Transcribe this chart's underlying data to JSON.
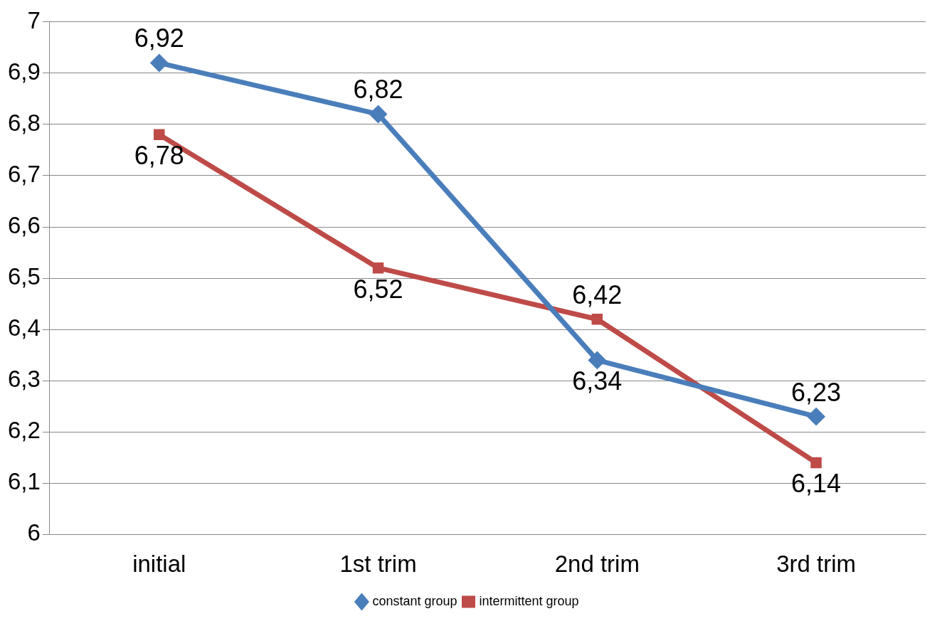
{
  "chart_data": {
    "type": "line",
    "categories": [
      "initial",
      "1st trim",
      "2nd trim",
      "3rd trim"
    ],
    "series": [
      {
        "name": "constant group",
        "color": "#4a7ebb",
        "marker": "diamond",
        "values": [
          6.92,
          6.82,
          6.34,
          6.23
        ],
        "value_labels": [
          "6,92",
          "6,82",
          "6,34",
          "6,23"
        ]
      },
      {
        "name": "intermittent group",
        "color": "#be4b48",
        "marker": "square",
        "values": [
          6.78,
          6.52,
          6.42,
          6.14
        ],
        "value_labels": [
          "6,78",
          "6,52",
          "6,42",
          "6,14"
        ]
      }
    ],
    "ylim": [
      6,
      7
    ],
    "yticks": [
      {
        "value": 6,
        "label": "6"
      },
      {
        "value": 6.1,
        "label": "6,1"
      },
      {
        "value": 6.2,
        "label": "6,2"
      },
      {
        "value": 6.3,
        "label": "6,3"
      },
      {
        "value": 6.4,
        "label": "6,4"
      },
      {
        "value": 6.5,
        "label": "6,5"
      },
      {
        "value": 6.6,
        "label": "6,6"
      },
      {
        "value": 6.7,
        "label": "6,7"
      },
      {
        "value": 6.8,
        "label": "6,8"
      },
      {
        "value": 6.9,
        "label": "6,9"
      },
      {
        "value": 7,
        "label": "7"
      }
    ],
    "grid": "y",
    "legend": "bottom",
    "line_style": "solid"
  }
}
